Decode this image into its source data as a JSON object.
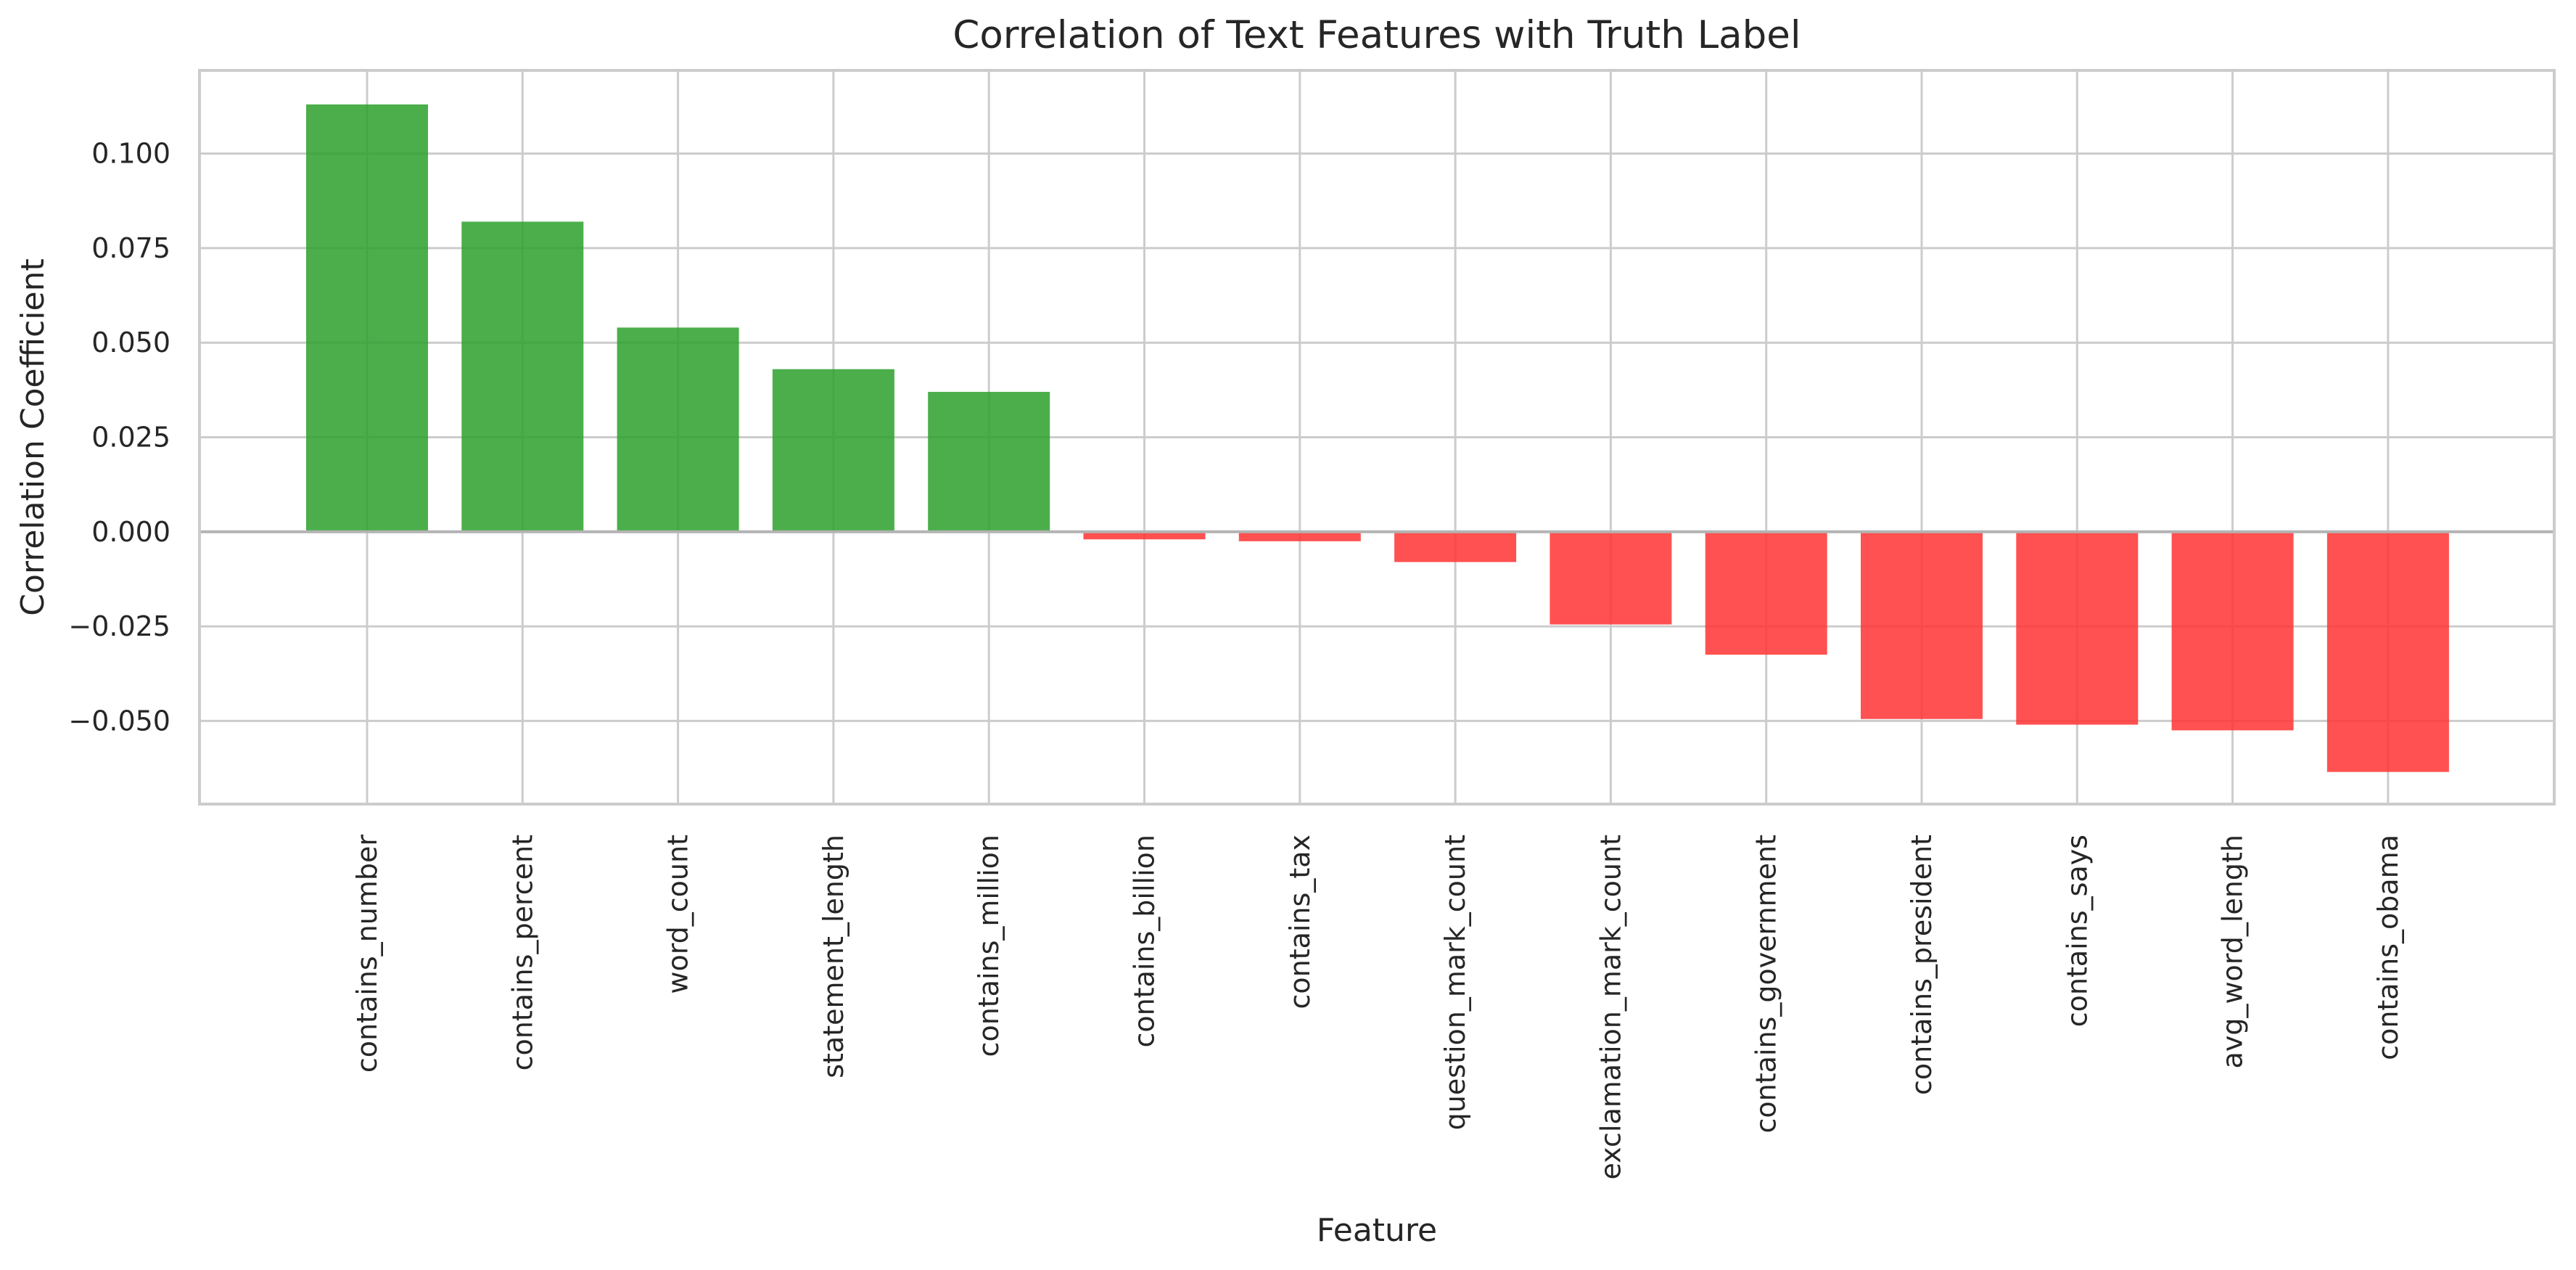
{
  "chart_data": {
    "type": "bar",
    "title": "Correlation of Text Features with Truth Label",
    "xlabel": "Feature",
    "ylabel": "Correlation Coefficient",
    "categories": [
      "contains_number",
      "contains_percent",
      "word_count",
      "statement_length",
      "contains_million",
      "contains_billion",
      "contains_tax",
      "question_mark_count",
      "exclamation_mark_count",
      "contains_government",
      "contains_president",
      "contains_says",
      "avg_word_length",
      "contains_obama"
    ],
    "values": [
      0.113,
      0.082,
      0.054,
      0.043,
      0.037,
      -0.002,
      -0.0025,
      -0.008,
      -0.0245,
      -0.0325,
      -0.0495,
      -0.051,
      -0.0525,
      -0.0635
    ],
    "ylim": [
      -0.072,
      0.122
    ],
    "yticks": [
      -0.05,
      -0.025,
      0.0,
      0.025,
      0.05,
      0.075,
      0.1
    ],
    "ytick_labels": [
      "−0.050",
      "−0.025",
      "0.000",
      "0.025",
      "0.050",
      "0.075",
      "0.100"
    ],
    "grid": true,
    "colors": {
      "positive": "#2ca02c",
      "negative": "#ff3333",
      "grid": "#cccccc",
      "text": "#262626"
    },
    "bar_opacity": 0.85
  }
}
